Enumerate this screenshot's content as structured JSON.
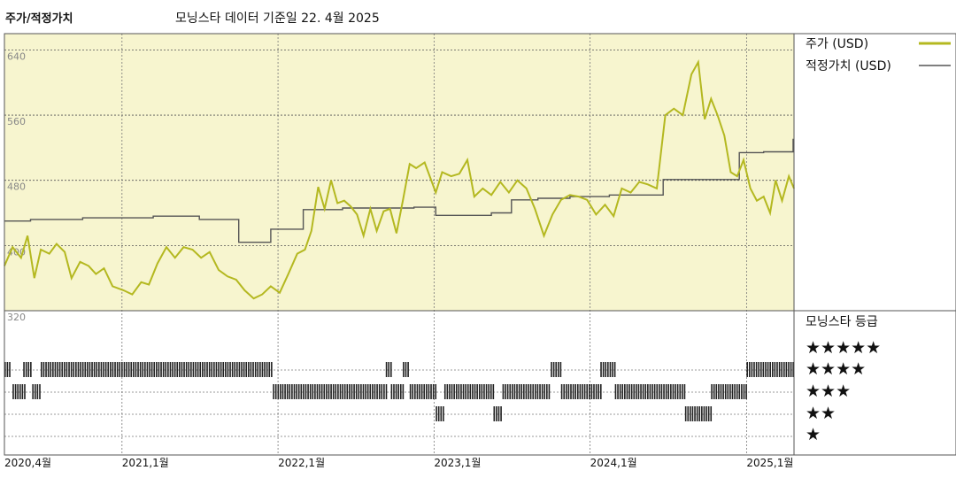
{
  "header": {
    "title": "주가/적정가치",
    "source_note": "모닝스타 데이터 기준일 22. 4월 2025"
  },
  "colors": {
    "price": "#b4b820",
    "fair_value": "#555555",
    "plot_bg": "#f7f5cf",
    "rating_bar": "#222222"
  },
  "legend": {
    "price_label": "주가 (USD)",
    "fair_value_label": "적정가치 (USD)"
  },
  "rating_panel": {
    "title": "모닝스타 등급",
    "rows": [
      "★★★★★",
      "★★★★",
      "★★★",
      "★★",
      "★"
    ]
  },
  "chart_data": {
    "type": "line",
    "title": "주가/적정가치",
    "ylim": [
      320,
      660
    ],
    "yticks": [
      {
        "value": 640,
        "label": "640"
      },
      {
        "value": 560,
        "label": "560"
      },
      {
        "value": 480,
        "label": "480"
      },
      {
        "value": 400,
        "label": "400"
      },
      {
        "value": 320,
        "label": "320"
      }
    ],
    "x_range": [
      "2020-04-01",
      "2025-04-22"
    ],
    "xticks": [
      {
        "date": "2020-04-01",
        "label": "2020,4월"
      },
      {
        "date": "2021-01-01",
        "label": "2021,1월"
      },
      {
        "date": "2022-01-01",
        "label": "2022,1월"
      },
      {
        "date": "2023-01-01",
        "label": "2023,1월"
      },
      {
        "date": "2024-01-01",
        "label": "2024,1월"
      },
      {
        "date": "2025-01-01",
        "label": "2025,1월"
      }
    ],
    "series": [
      {
        "name": "주가 (USD)",
        "points": [
          [
            "2020-04-01",
            375
          ],
          [
            "2020-04-20",
            398
          ],
          [
            "2020-05-10",
            385
          ],
          [
            "2020-05-25",
            412
          ],
          [
            "2020-06-10",
            360
          ],
          [
            "2020-06-25",
            395
          ],
          [
            "2020-07-15",
            390
          ],
          [
            "2020-08-01",
            402
          ],
          [
            "2020-08-20",
            392
          ],
          [
            "2020-09-05",
            360
          ],
          [
            "2020-09-25",
            380
          ],
          [
            "2020-10-15",
            375
          ],
          [
            "2020-11-01",
            365
          ],
          [
            "2020-11-20",
            372
          ],
          [
            "2020-12-10",
            350
          ],
          [
            "2021-01-05",
            345
          ],
          [
            "2021-01-25",
            340
          ],
          [
            "2021-02-15",
            355
          ],
          [
            "2021-03-05",
            352
          ],
          [
            "2021-03-25",
            378
          ],
          [
            "2021-04-15",
            398
          ],
          [
            "2021-05-05",
            385
          ],
          [
            "2021-05-25",
            398
          ],
          [
            "2021-06-15",
            395
          ],
          [
            "2021-07-05",
            385
          ],
          [
            "2021-07-25",
            392
          ],
          [
            "2021-08-15",
            370
          ],
          [
            "2021-09-05",
            362
          ],
          [
            "2021-09-25",
            358
          ],
          [
            "2021-10-15",
            345
          ],
          [
            "2021-11-05",
            335
          ],
          [
            "2021-11-25",
            340
          ],
          [
            "2021-12-15",
            350
          ],
          [
            "2022-01-05",
            342
          ],
          [
            "2022-01-25",
            365
          ],
          [
            "2022-02-15",
            390
          ],
          [
            "2022-03-05",
            395
          ],
          [
            "2022-03-20",
            418
          ],
          [
            "2022-04-05",
            472
          ],
          [
            "2022-04-20",
            445
          ],
          [
            "2022-05-05",
            480
          ],
          [
            "2022-05-20",
            452
          ],
          [
            "2022-06-05",
            455
          ],
          [
            "2022-06-20",
            448
          ],
          [
            "2022-07-05",
            438
          ],
          [
            "2022-07-20",
            412
          ],
          [
            "2022-08-05",
            445
          ],
          [
            "2022-08-20",
            418
          ],
          [
            "2022-09-05",
            442
          ],
          [
            "2022-09-20",
            445
          ],
          [
            "2022-10-05",
            415
          ],
          [
            "2022-10-20",
            455
          ],
          [
            "2022-11-05",
            500
          ],
          [
            "2022-11-20",
            495
          ],
          [
            "2022-12-10",
            502
          ],
          [
            "2023-01-05",
            465
          ],
          [
            "2023-01-20",
            490
          ],
          [
            "2023-02-10",
            485
          ],
          [
            "2023-03-01",
            488
          ],
          [
            "2023-03-20",
            505
          ],
          [
            "2023-04-05",
            460
          ],
          [
            "2023-04-25",
            470
          ],
          [
            "2023-05-15",
            462
          ],
          [
            "2023-06-05",
            478
          ],
          [
            "2023-06-25",
            465
          ],
          [
            "2023-07-15",
            480
          ],
          [
            "2023-08-05",
            470
          ],
          [
            "2023-08-25",
            445
          ],
          [
            "2023-09-15",
            412
          ],
          [
            "2023-10-05",
            438
          ],
          [
            "2023-10-25",
            456
          ],
          [
            "2023-11-15",
            462
          ],
          [
            "2023-12-05",
            460
          ],
          [
            "2023-12-25",
            456
          ],
          [
            "2024-01-15",
            438
          ],
          [
            "2024-02-05",
            450
          ],
          [
            "2024-02-25",
            436
          ],
          [
            "2024-03-15",
            470
          ],
          [
            "2024-04-05",
            465
          ],
          [
            "2024-04-25",
            478
          ],
          [
            "2024-05-15",
            475
          ],
          [
            "2024-06-05",
            470
          ],
          [
            "2024-06-25",
            560
          ],
          [
            "2024-07-15",
            568
          ],
          [
            "2024-08-05",
            560
          ],
          [
            "2024-08-25",
            610
          ],
          [
            "2024-09-10",
            625
          ],
          [
            "2024-09-25",
            555
          ],
          [
            "2024-10-10",
            580
          ],
          [
            "2024-10-25",
            560
          ],
          [
            "2024-11-10",
            535
          ],
          [
            "2024-11-25",
            490
          ],
          [
            "2024-12-10",
            485
          ],
          [
            "2024-12-25",
            505
          ],
          [
            "2025-01-10",
            470
          ],
          [
            "2025-01-25",
            455
          ],
          [
            "2025-02-10",
            460
          ],
          [
            "2025-02-25",
            440
          ],
          [
            "2025-03-10",
            480
          ],
          [
            "2025-03-25",
            455
          ],
          [
            "2025-04-10",
            485
          ],
          [
            "2025-04-22",
            470
          ]
        ]
      },
      {
        "name": "적정가치 (USD)",
        "steps": [
          [
            "2020-04-01",
            430
          ],
          [
            "2020-06-01",
            432
          ],
          [
            "2020-10-01",
            434
          ],
          [
            "2021-03-15",
            436
          ],
          [
            "2021-07-01",
            432
          ],
          [
            "2021-10-01",
            404
          ],
          [
            "2021-12-15",
            420
          ],
          [
            "2022-03-01",
            444
          ],
          [
            "2022-06-01",
            446
          ],
          [
            "2022-11-15",
            447
          ],
          [
            "2023-01-05",
            437
          ],
          [
            "2023-05-15",
            440
          ],
          [
            "2023-07-01",
            456
          ],
          [
            "2023-09-01",
            458
          ],
          [
            "2023-11-15",
            460
          ],
          [
            "2024-02-15",
            462
          ],
          [
            "2024-06-20",
            481
          ],
          [
            "2024-12-15",
            514
          ],
          [
            "2025-02-10",
            515
          ],
          [
            "2025-04-20",
            531
          ]
        ]
      }
    ],
    "ratings": [
      {
        "stars": 5,
        "spans": [
          [
            "2020-04-01",
            "2020-04-15"
          ],
          [
            "2020-05-15",
            "2020-06-05"
          ],
          [
            "2020-06-25",
            "2021-12-20"
          ],
          [
            "2022-09-10",
            "2022-09-22"
          ],
          [
            "2022-10-20",
            "2022-11-05"
          ],
          [
            "2023-10-01",
            "2023-10-25"
          ],
          [
            "2024-01-25",
            "2024-02-28"
          ],
          [
            "2025-01-01",
            "2025-04-22"
          ]
        ]
      },
      {
        "stars": 4,
        "spans": [
          [
            "2020-04-20",
            "2020-05-20"
          ],
          [
            "2020-06-05",
            "2020-06-25"
          ],
          [
            "2021-12-20",
            "2022-09-10"
          ],
          [
            "2022-09-22",
            "2022-10-20"
          ],
          [
            "2022-11-05",
            "2023-01-05"
          ],
          [
            "2023-01-25",
            "2023-05-20"
          ],
          [
            "2023-06-10",
            "2023-10-01"
          ],
          [
            "2023-10-25",
            "2024-01-25"
          ],
          [
            "2024-02-28",
            "2024-08-10"
          ],
          [
            "2024-10-10",
            "2025-01-01"
          ]
        ]
      },
      {
        "stars": 3,
        "spans": [
          [
            "2023-01-05",
            "2023-01-25"
          ],
          [
            "2023-05-20",
            "2023-06-10"
          ],
          [
            "2024-08-10",
            "2024-10-10"
          ]
        ]
      },
      {
        "stars": 2,
        "spans": []
      },
      {
        "stars": 1,
        "spans": []
      }
    ]
  }
}
